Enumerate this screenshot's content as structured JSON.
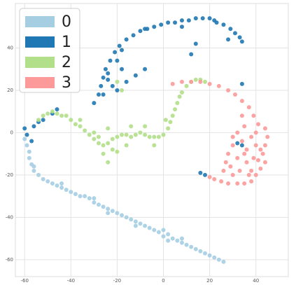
{
  "chart_data": {
    "type": "scatter",
    "xlim": [
      -64,
      54
    ],
    "ylim": [
      -68,
      61
    ],
    "xticks": [
      -60,
      -40,
      -20,
      0,
      20,
      40
    ],
    "yticks": [
      -60,
      -40,
      -20,
      0,
      20,
      40
    ],
    "grid": true,
    "legend": "upper left",
    "series": [
      {
        "name": "0",
        "color": "#a6cee3",
        "x": [
          -60,
          -59,
          -58,
          -58,
          -57,
          -56,
          -54,
          -52,
          -50,
          -48,
          -46,
          -44,
          -42,
          -40,
          -38,
          -36,
          -34,
          -32,
          -30,
          -28,
          -26,
          -24,
          -22,
          -20,
          -18,
          -16,
          -14,
          -12,
          -10,
          -8,
          -6,
          -4,
          -2,
          0,
          2,
          4,
          6,
          8,
          10,
          12,
          14,
          16,
          18,
          20,
          22,
          24,
          26,
          -24,
          -12,
          0,
          2,
          8,
          -30,
          -44,
          -56
        ],
        "y": [
          -3,
          -6,
          -9,
          -12,
          -15,
          -18,
          -20,
          -22,
          -23,
          -24,
          -25,
          -26,
          -27,
          -28,
          -29,
          -30,
          -30,
          -31,
          -33,
          -34,
          -35,
          -36,
          -37,
          -38,
          -39,
          -40,
          -41,
          -42,
          -43,
          -44,
          -45,
          -46,
          -47,
          -49,
          -48,
          -50,
          -51,
          -52,
          -53,
          -54,
          -55,
          -56,
          -57,
          -58,
          -59,
          -60,
          -61,
          -38,
          -44,
          -46,
          -51,
          -50,
          -31,
          -24,
          -16
        ]
      },
      {
        "name": "1",
        "color": "#1f78b4",
        "x": [
          -28,
          -27,
          -26,
          -25,
          -23,
          -21,
          -19,
          -16,
          -13,
          -10,
          -7,
          -4,
          -1,
          2,
          5,
          8,
          11,
          14,
          17,
          20,
          23,
          26,
          29,
          31,
          33,
          34,
          -24,
          -20,
          -18,
          -22,
          -16,
          -12,
          -8,
          -20,
          -30,
          28,
          12,
          14,
          -59,
          -60,
          -56,
          -52,
          -48,
          -46,
          -8,
          8,
          22,
          -18,
          34,
          32,
          34,
          18,
          16,
          -24,
          -26,
          -57,
          -54
        ],
        "y": [
          18,
          22,
          26,
          30,
          34,
          38,
          41,
          44,
          46,
          48,
          49,
          50,
          51,
          52,
          52,
          53,
          53,
          54,
          54,
          54,
          52,
          51,
          49,
          47,
          45,
          43,
          28,
          34,
          30,
          22,
          24,
          27,
          30,
          20,
          14,
          44,
          37,
          42,
          -1,
          2,
          3,
          6,
          9,
          11,
          49,
          50,
          53,
          39,
          23,
          -5,
          -6,
          -20,
          -19,
          25,
          18,
          -4,
          5
        ]
      },
      {
        "name": "2",
        "color": "#b2df8a",
        "x": [
          -54,
          -52,
          -50,
          -48,
          -46,
          -44,
          -42,
          -40,
          -38,
          -36,
          -34,
          -32,
          -30,
          -28,
          -26,
          -24,
          -22,
          -20,
          -18,
          -16,
          -14,
          -12,
          -10,
          -8,
          -6,
          -4,
          -2,
          0,
          2,
          3,
          4,
          5,
          6,
          7,
          8,
          10,
          12,
          14,
          16,
          18,
          -26,
          -24,
          -22,
          -20,
          -30,
          -14,
          -8,
          -4,
          1,
          -18,
          -20,
          -36,
          -28,
          -24,
          -16
        ],
        "y": [
          6,
          8,
          9,
          10,
          9,
          8,
          8,
          6,
          4,
          3,
          1,
          -1,
          -3,
          -5,
          -6,
          -5,
          -3,
          -2,
          -1,
          -1,
          -2,
          -1,
          0,
          -1,
          -2,
          -2,
          -2,
          -1,
          2,
          5,
          8,
          11,
          14,
          17,
          19,
          22,
          24,
          25,
          25,
          24,
          -10,
          -14,
          -8,
          -9,
          0,
          3,
          3,
          -6,
          6,
          20,
          24,
          6,
          -2,
          2,
          -6
        ]
      },
      {
        "name": "3",
        "color": "#fb9a99",
        "x": [
          4,
          8,
          12,
          16,
          20,
          24,
          28,
          31,
          34,
          37,
          39,
          41,
          44,
          45,
          44,
          43,
          41,
          42,
          40,
          38,
          35,
          32,
          28,
          25,
          22,
          20,
          32,
          34,
          36,
          38,
          35,
          40,
          30,
          28,
          32,
          36,
          38,
          33,
          29,
          27,
          40,
          34,
          30,
          42,
          37,
          30,
          26,
          35,
          39,
          44
        ],
        "y": [
          23,
          24,
          24,
          24,
          23,
          22,
          20,
          18,
          15,
          12,
          8,
          4,
          2,
          -2,
          -6,
          -10,
          -13,
          -17,
          -20,
          -23,
          -24,
          -24,
          -24,
          -23,
          -22,
          -21,
          0,
          -4,
          -8,
          -2,
          3,
          -6,
          -6,
          -10,
          -12,
          -14,
          -18,
          -18,
          -16,
          -14,
          0,
          8,
          -2,
          -8,
          -20,
          -20,
          -18,
          -10,
          -12,
          -14
        ]
      }
    ]
  }
}
